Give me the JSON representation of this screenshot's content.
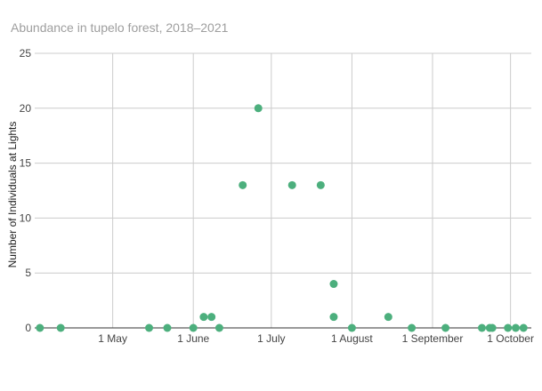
{
  "chart_data": {
    "type": "scatter",
    "title": "Abundance in tupelo forest, 2018–2021",
    "xlabel": "",
    "ylabel": "Number of Individuals at Lights",
    "x_axis": {
      "kind": "date",
      "range": [
        "2000-04-01",
        "2000-10-09"
      ],
      "ticks": [
        {
          "value": "2000-05-01",
          "label": "1 May"
        },
        {
          "value": "2000-06-01",
          "label": "1 June"
        },
        {
          "value": "2000-07-01",
          "label": "1 July"
        },
        {
          "value": "2000-08-01",
          "label": "1 August"
        },
        {
          "value": "2000-09-01",
          "label": "1 September"
        },
        {
          "value": "2000-10-01",
          "label": "1 October"
        }
      ]
    },
    "ylim": [
      0,
      25
    ],
    "yticks": [
      0,
      5,
      10,
      15,
      20,
      25
    ],
    "grid": true,
    "legend": "none",
    "marker_color": "#4caf7d",
    "points": [
      {
        "x": "2000-04-03",
        "y": 0
      },
      {
        "x": "2000-04-11",
        "y": 0
      },
      {
        "x": "2000-05-15",
        "y": 0
      },
      {
        "x": "2000-05-22",
        "y": 0
      },
      {
        "x": "2000-06-01",
        "y": 0
      },
      {
        "x": "2000-06-05",
        "y": 1
      },
      {
        "x": "2000-06-08",
        "y": 1
      },
      {
        "x": "2000-06-11",
        "y": 0
      },
      {
        "x": "2000-06-20",
        "y": 13
      },
      {
        "x": "2000-06-26",
        "y": 20
      },
      {
        "x": "2000-07-09",
        "y": 13
      },
      {
        "x": "2000-07-20",
        "y": 13
      },
      {
        "x": "2000-07-25",
        "y": 4
      },
      {
        "x": "2000-07-25",
        "y": 1
      },
      {
        "x": "2000-08-01",
        "y": 0
      },
      {
        "x": "2000-08-15",
        "y": 1
      },
      {
        "x": "2000-08-24",
        "y": 0
      },
      {
        "x": "2000-09-06",
        "y": 0
      },
      {
        "x": "2000-09-20",
        "y": 0
      },
      {
        "x": "2000-09-23",
        "y": 0
      },
      {
        "x": "2000-09-24",
        "y": 0
      },
      {
        "x": "2000-09-30",
        "y": 0
      },
      {
        "x": "2000-10-03",
        "y": 0
      },
      {
        "x": "2000-10-06",
        "y": 0
      }
    ]
  }
}
